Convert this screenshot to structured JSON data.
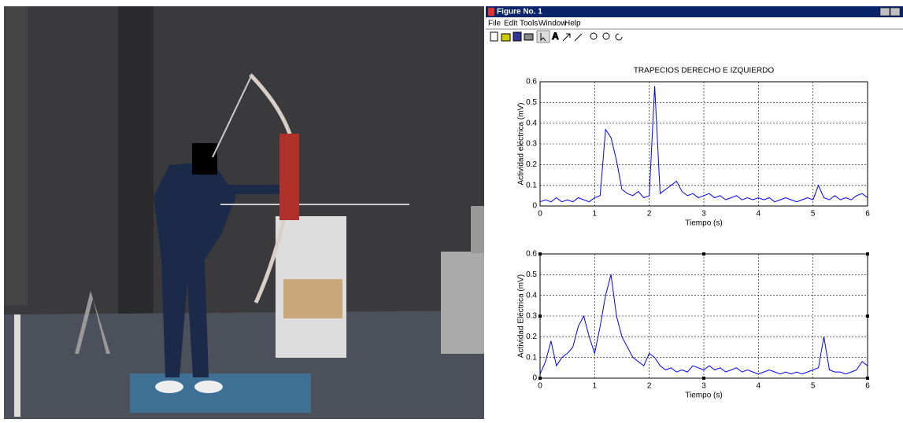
{
  "window": {
    "title": "Figure No. 1",
    "menu": [
      "File",
      "Edit",
      "Tools",
      "Window",
      "Help"
    ]
  },
  "chart_data": [
    {
      "type": "line",
      "title": "TRAPECIOS DERECHO E IZQUIERDO",
      "x_label": "Tiempo (s)",
      "y_label": "Actividad eléctrica (mV)",
      "color": "#0000ff",
      "grid": true,
      "xlim": [
        0,
        6
      ],
      "ylim": [
        0,
        0.6
      ],
      "xticks": [
        0,
        1,
        2,
        3,
        4,
        5,
        6
      ],
      "yticks": [
        0,
        0.1,
        0.2,
        0.3,
        0.4,
        0.5,
        0.6
      ],
      "x": [
        0,
        0.1,
        0.2,
        0.3,
        0.4,
        0.5,
        0.6,
        0.7,
        0.8,
        0.9,
        1,
        1.1,
        1.2,
        1.3,
        1.4,
        1.5,
        1.6,
        1.7,
        1.8,
        1.9,
        2,
        2.1,
        2.2,
        2.3,
        2.4,
        2.5,
        2.6,
        2.7,
        2.8,
        2.9,
        3,
        3.1,
        3.2,
        3.3,
        3.4,
        3.5,
        3.6,
        3.7,
        3.8,
        3.9,
        4,
        4.1,
        4.2,
        4.3,
        4.4,
        4.5,
        4.6,
        4.7,
        4.8,
        4.9,
        5,
        5.1,
        5.2,
        5.3,
        5.4,
        5.5,
        5.6,
        5.7,
        5.8,
        5.9,
        6
      ],
      "values": [
        0.02,
        0.03,
        0.02,
        0.04,
        0.02,
        0.03,
        0.02,
        0.04,
        0.03,
        0.02,
        0.04,
        0.05,
        0.37,
        0.33,
        0.22,
        0.08,
        0.06,
        0.05,
        0.07,
        0.04,
        0.05,
        0.58,
        0.06,
        0.08,
        0.1,
        0.12,
        0.07,
        0.05,
        0.06,
        0.04,
        0.05,
        0.06,
        0.04,
        0.05,
        0.03,
        0.04,
        0.05,
        0.03,
        0.04,
        0.03,
        0.04,
        0.03,
        0.04,
        0.02,
        0.03,
        0.04,
        0.03,
        0.02,
        0.03,
        0.04,
        0.03,
        0.1,
        0.04,
        0.03,
        0.05,
        0.03,
        0.04,
        0.03,
        0.05,
        0.06,
        0.04
      ]
    },
    {
      "type": "line",
      "x_label": "Tiempo (s)",
      "y_label": "Actividad Eléctrica (mV)",
      "color": "#0000ff",
      "grid": true,
      "xlim": [
        0,
        6
      ],
      "ylim": [
        0,
        0.6
      ],
      "xticks": [
        0,
        1,
        2,
        3,
        4,
        5,
        6
      ],
      "yticks": [
        0,
        0.1,
        0.2,
        0.3,
        0.4,
        0.5,
        0.6
      ],
      "x": [
        0,
        0.1,
        0.2,
        0.3,
        0.4,
        0.5,
        0.6,
        0.7,
        0.8,
        0.9,
        1,
        1.1,
        1.2,
        1.3,
        1.4,
        1.5,
        1.6,
        1.7,
        1.8,
        1.9,
        2,
        2.1,
        2.2,
        2.3,
        2.4,
        2.5,
        2.6,
        2.7,
        2.8,
        2.9,
        3,
        3.1,
        3.2,
        3.3,
        3.4,
        3.5,
        3.6,
        3.7,
        3.8,
        3.9,
        4,
        4.1,
        4.2,
        4.3,
        4.4,
        4.5,
        4.6,
        4.7,
        4.8,
        4.9,
        5,
        5.1,
        5.2,
        5.3,
        5.4,
        5.5,
        5.6,
        5.7,
        5.8,
        5.9,
        6
      ],
      "values": [
        0.02,
        0.08,
        0.18,
        0.06,
        0.1,
        0.12,
        0.15,
        0.25,
        0.3,
        0.2,
        0.12,
        0.25,
        0.4,
        0.5,
        0.3,
        0.2,
        0.15,
        0.1,
        0.08,
        0.06,
        0.12,
        0.1,
        0.06,
        0.04,
        0.05,
        0.03,
        0.04,
        0.03,
        0.06,
        0.05,
        0.04,
        0.06,
        0.04,
        0.05,
        0.03,
        0.04,
        0.05,
        0.03,
        0.04,
        0.03,
        0.02,
        0.03,
        0.04,
        0.03,
        0.02,
        0.03,
        0.02,
        0.03,
        0.02,
        0.03,
        0.04,
        0.05,
        0.2,
        0.04,
        0.03,
        0.03,
        0.02,
        0.03,
        0.04,
        0.08,
        0.06
      ]
    }
  ]
}
